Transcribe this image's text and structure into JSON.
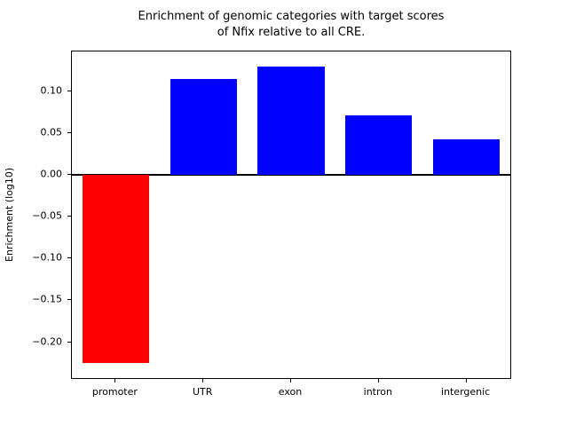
{
  "chart_data": {
    "type": "bar",
    "title": "Enrichment of genomic categories with target scores\nof Nfix relative to all CRE.",
    "xlabel": "",
    "ylabel": "Enrichment (log10)",
    "categories": [
      "promoter",
      "UTR",
      "exon",
      "intron",
      "intergenic"
    ],
    "values": [
      -0.225,
      0.115,
      0.13,
      0.072,
      0.043
    ],
    "bar_colors": [
      "#ff0000",
      "#0000ff",
      "#0000ff",
      "#0000ff",
      "#0000ff"
    ],
    "yticks": [
      -0.2,
      -0.15,
      -0.1,
      -0.05,
      0.0,
      0.05,
      0.1
    ],
    "ytick_labels": [
      "−0.20",
      "−0.15",
      "−0.10",
      "−0.05",
      "0.00",
      "0.05",
      "0.10"
    ],
    "ylim": [
      -0.243,
      0.148
    ],
    "grid": false,
    "legend": null,
    "zero_line": true,
    "bar_width_fraction": 0.76
  }
}
